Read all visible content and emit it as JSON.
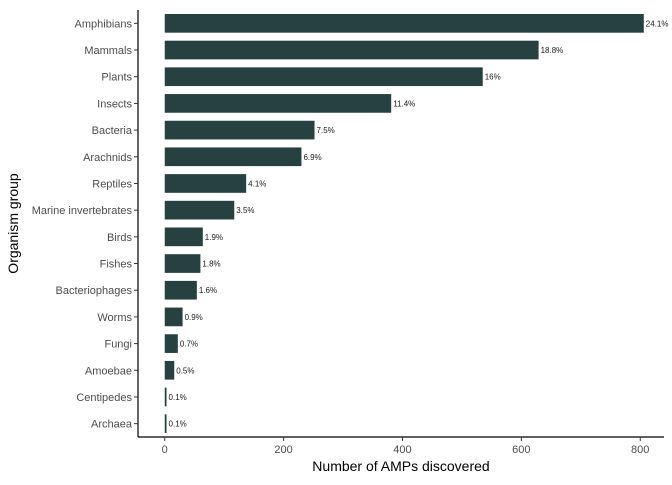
{
  "chart_data": {
    "type": "bar",
    "orientation": "horizontal",
    "xlabel": "Number of AMPs discovered",
    "ylabel": "Organism group",
    "xlim": [
      -45,
      840
    ],
    "xticks": [
      0,
      200,
      400,
      600,
      800
    ],
    "grid": false,
    "legend": "none",
    "bar_color": "#264140",
    "categories": [
      "Amphibians",
      "Mammals",
      "Plants",
      "Insects",
      "Bacteria",
      "Arachnids",
      "Reptiles",
      "Marine invertebrates",
      "Birds",
      "Fishes",
      "Bacteriophages",
      "Worms",
      "Fungi",
      "Amoebae",
      "Centipedes",
      "Archaea"
    ],
    "values": [
      806,
      629,
      535,
      381,
      252,
      230,
      137,
      117,
      64,
      60,
      54,
      30,
      22,
      16,
      3,
      3
    ],
    "data_labels": [
      "24.1%",
      "18.8%",
      "16%",
      "11.4%",
      "7.5%",
      "6.9%",
      "4.1%",
      "3.5%",
      "1.9%",
      "1.8%",
      "1.6%",
      "0.9%",
      "0.7%",
      "0.5%",
      "0.1%",
      "0.1%"
    ]
  }
}
